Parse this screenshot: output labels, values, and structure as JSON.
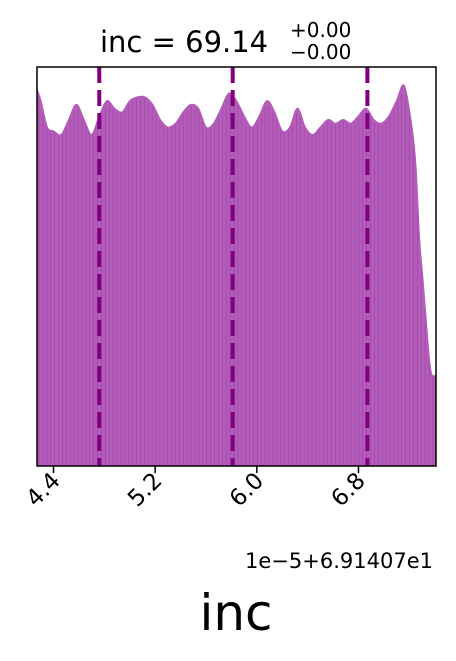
{
  "chart_data": {
    "type": "area",
    "title_main": "inc = 69.14",
    "title_sup": "+0.00",
    "title_sub": "−0.00",
    "xlabel": "inc",
    "offset_label": "1e−5+6.91407e1",
    "x_ticks": [
      {
        "value": 4.4,
        "label": "4.4"
      },
      {
        "value": 5.2,
        "label": "5.2"
      },
      {
        "value": 6.0,
        "label": "6.0"
      },
      {
        "value": 6.8,
        "label": "6.8"
      }
    ],
    "xlim": [
      4.27,
      7.41
    ],
    "ylim": [
      0,
      1.06
    ],
    "quantile_lines": [
      4.76,
      5.81,
      6.87
    ],
    "density": {
      "x": [
        4.27,
        4.3,
        4.35,
        4.4,
        4.46,
        4.52,
        4.58,
        4.64,
        4.7,
        4.76,
        4.82,
        4.88,
        4.94,
        5.0,
        5.06,
        5.12,
        5.18,
        5.24,
        5.3,
        5.36,
        5.42,
        5.48,
        5.54,
        5.6,
        5.66,
        5.72,
        5.78,
        5.84,
        5.9,
        5.96,
        6.02,
        6.08,
        6.14,
        6.2,
        6.26,
        6.32,
        6.38,
        6.44,
        6.5,
        6.56,
        6.62,
        6.68,
        6.74,
        6.8,
        6.86,
        6.92,
        6.98,
        7.04,
        7.1,
        7.16,
        7.22,
        7.25,
        7.28,
        7.31,
        7.34,
        7.37,
        7.41
      ],
      "y": [
        1.0,
        0.97,
        0.9,
        0.89,
        0.88,
        0.92,
        0.96,
        0.92,
        0.88,
        0.93,
        0.97,
        0.95,
        0.94,
        0.97,
        0.98,
        0.98,
        0.96,
        0.92,
        0.9,
        0.91,
        0.94,
        0.96,
        0.95,
        0.9,
        0.91,
        0.95,
        0.99,
        0.97,
        0.93,
        0.9,
        0.93,
        0.97,
        0.94,
        0.89,
        0.9,
        0.95,
        0.9,
        0.88,
        0.9,
        0.92,
        0.91,
        0.92,
        0.91,
        0.93,
        0.95,
        0.92,
        0.91,
        0.93,
        0.97,
        1.01,
        0.9,
        0.8,
        0.6,
        0.48,
        0.35,
        0.25,
        0.24
      ]
    },
    "colors": {
      "fill": "#b35cb9",
      "stroke": "#8b2f92",
      "quantile": "#800080",
      "axes": "#000000"
    }
  }
}
